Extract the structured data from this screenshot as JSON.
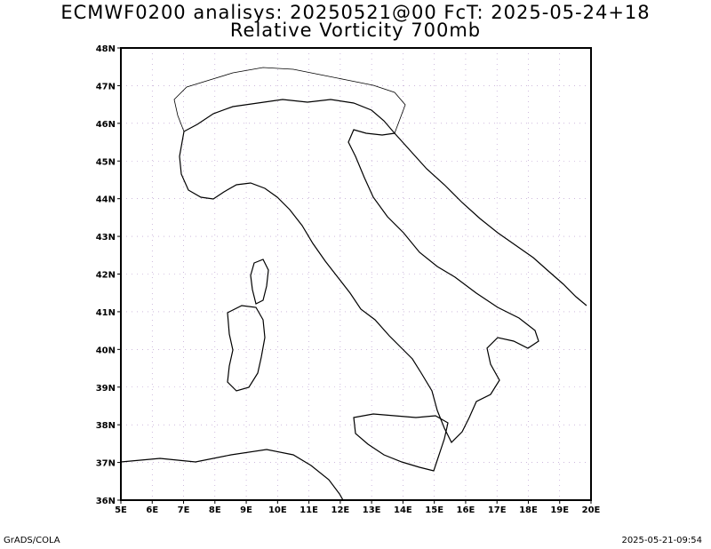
{
  "title_line1": "ECMWF0200 analisys: 20250521@00 FcT: 2025-05-24+18",
  "title_line2": "Relative Vorticity 700mb",
  "footer_left": "GrADS/COLA",
  "footer_right": "2025-05-21-09:54",
  "colors": {
    "positive": "#ff3b3b",
    "negative": "#2846ff",
    "coast": "#000000",
    "grid": "#b08fc8"
  },
  "axes": {
    "lat_labels": [
      "48N",
      "47N",
      "46N",
      "45N",
      "44N",
      "43N",
      "42N",
      "41N",
      "40N",
      "39N",
      "38N",
      "37N",
      "36N"
    ],
    "lon_labels": [
      "5E",
      "6E",
      "7E",
      "8E",
      "9E",
      "10E",
      "11E",
      "12E",
      "13E",
      "14E",
      "15E",
      "16E",
      "17E",
      "18E",
      "19E",
      "20E"
    ]
  }
}
